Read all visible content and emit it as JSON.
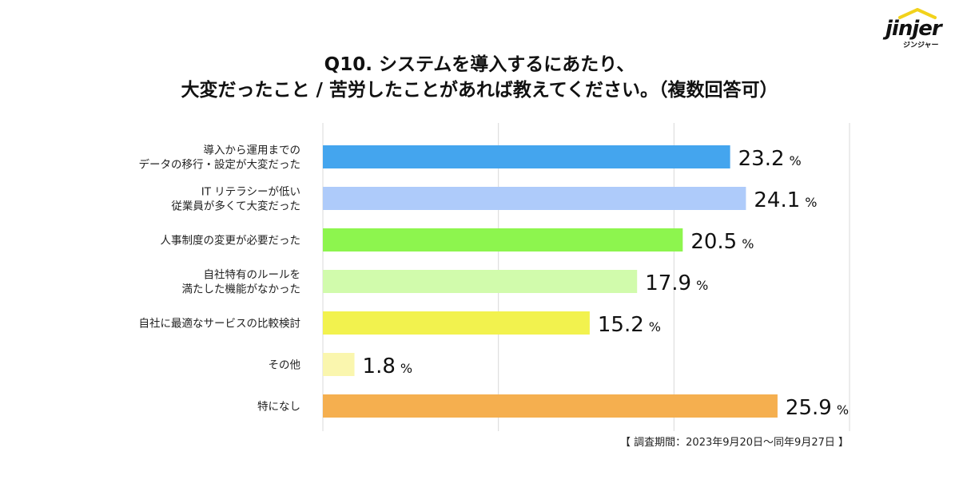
{
  "logo": {
    "wordmark": "jinjer",
    "sub": "ジンジャー",
    "roof_color": "#F2D21B"
  },
  "title": {
    "line1": "Q10. システムを導入するにあたり、",
    "line2": "大変だったこと / 苦労したことがあれば教えてください。（複数回答可）"
  },
  "note": "【 調査期間：2023年9月20日～同年9月27日 】",
  "chart_data": {
    "type": "bar",
    "orientation": "horizontal",
    "categories": [
      [
        "導入から運用までの",
        "データの移行・設定が大変だった"
      ],
      [
        "IT リテラシーが低い",
        "従業員が多くて大変だった"
      ],
      [
        "人事制度の変更が必要だった"
      ],
      [
        "自社特有のルールを",
        "満たした機能がなかった"
      ],
      [
        "自社に最適なサービスの比較検討"
      ],
      [
        "その他"
      ],
      [
        "特になし"
      ]
    ],
    "values": [
      23.2,
      24.1,
      20.5,
      17.9,
      15.2,
      1.8,
      25.9
    ],
    "value_labels": [
      "23.2",
      "24.1",
      "20.5",
      "17.9",
      "15.2",
      "1.8",
      "25.9"
    ],
    "unit": "%",
    "colors": [
      "#44A5EE",
      "#AECBFA",
      "#8DF54E",
      "#D1FBAC",
      "#F2F24E",
      "#FAF6AE",
      "#F5AF4F"
    ],
    "xlim": [
      0,
      30
    ],
    "grid_values": [
      0,
      10,
      20,
      30
    ],
    "grid_color": "#D9D9D9",
    "title": "",
    "xlabel": "",
    "ylabel": ""
  }
}
